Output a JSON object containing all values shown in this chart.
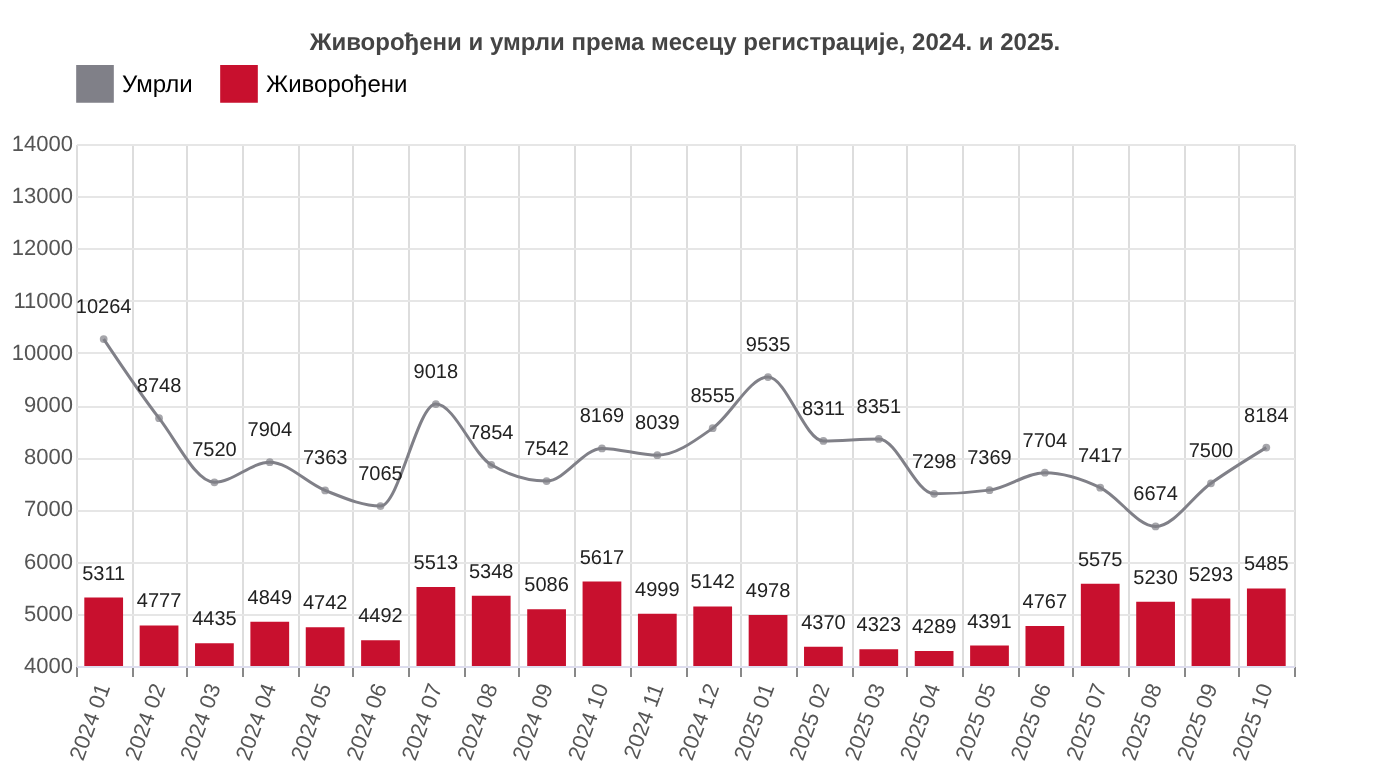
{
  "chart_data": {
    "type": "bar",
    "title": "Живорођени и умрли  према месецу регистрације, 2024. и 2025.",
    "categories": [
      "2024 01",
      "2024 02",
      "2024 03",
      "2024 04",
      "2024 05",
      "2024 06",
      "2024 07",
      "2024 08",
      "2024 09",
      "2024 10",
      "2024 11",
      "2024 12",
      "2025 01",
      "2025 02",
      "2025 03",
      "2025 04",
      "2025 05",
      "2025 06",
      "2025 07",
      "2025 08",
      "2025 09",
      "2025 10"
    ],
    "series": [
      {
        "name": "Умрли",
        "type": "line",
        "color": "#808088",
        "values": [
          10264,
          8748,
          7520,
          7904,
          7363,
          7065,
          9018,
          7854,
          7542,
          8169,
          8039,
          8555,
          9535,
          8311,
          8351,
          7298,
          7369,
          7704,
          7417,
          6674,
          7500,
          8184
        ]
      },
      {
        "name": "Живорођени",
        "color": "#c8102e",
        "values": [
          5311,
          4777,
          4435,
          4849,
          4742,
          4492,
          5513,
          5348,
          5086,
          5617,
          4999,
          5142,
          4978,
          4370,
          4323,
          4289,
          4391,
          4767,
          5575,
          5230,
          5293,
          5485
        ]
      }
    ],
    "ylim": [
      4000,
      14000
    ],
    "yticks": [
      4000,
      5000,
      6000,
      7000,
      8000,
      9000,
      10000,
      11000,
      12000,
      13000,
      14000
    ],
    "grid": true,
    "legend": "top",
    "marker": "circle",
    "line_style": "solid",
    "data_labels": true
  }
}
